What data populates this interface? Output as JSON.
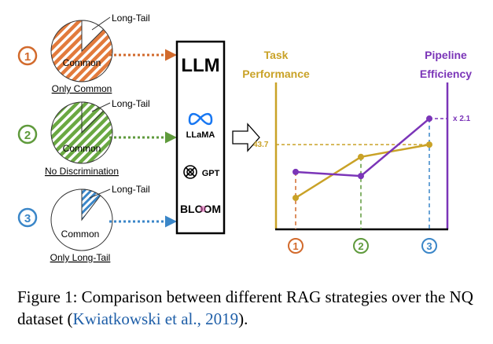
{
  "strategies": [
    {
      "number": "1",
      "color": "#d26a2c",
      "pie_center_label": "Common",
      "pie_slice_label": "Long-Tail",
      "caption": "Only Common"
    },
    {
      "number": "2",
      "color": "#5f9a3c",
      "pie_center_label": "Common",
      "pie_slice_label": "Long-Tail",
      "caption": "No Discrimination"
    },
    {
      "number": "3",
      "color": "#3a86c8",
      "pie_center_label": "Common",
      "pie_slice_label": "Long-Tail",
      "caption": "Only Long-Tail"
    }
  ],
  "llm_box": {
    "title": "LLM",
    "models": [
      "LLaMA",
      "GPT",
      "BLOOM"
    ]
  },
  "chart_data": {
    "type": "line",
    "categories": [
      "1",
      "2",
      "3"
    ],
    "left_axis_label": "Task Performance",
    "right_axis_label": "Pipeline Efficiency",
    "series": [
      {
        "name": "Task Performance",
        "color": "#c9a227",
        "values": [
          0.23,
          0.53,
          0.62
        ]
      },
      {
        "name": "Pipeline Efficiency",
        "color": "#7b35b8",
        "values": [
          0.42,
          0.39,
          0.81
        ]
      }
    ],
    "annotations": {
      "performance_value": "43.7",
      "efficiency_ratio": "x 2.1"
    }
  },
  "caption": {
    "prefix": "Figure 1: Comparison between different RAG strategies over the NQ dataset (",
    "citation": "Kwiatkowski et al., 2019",
    "suffix": ")."
  }
}
